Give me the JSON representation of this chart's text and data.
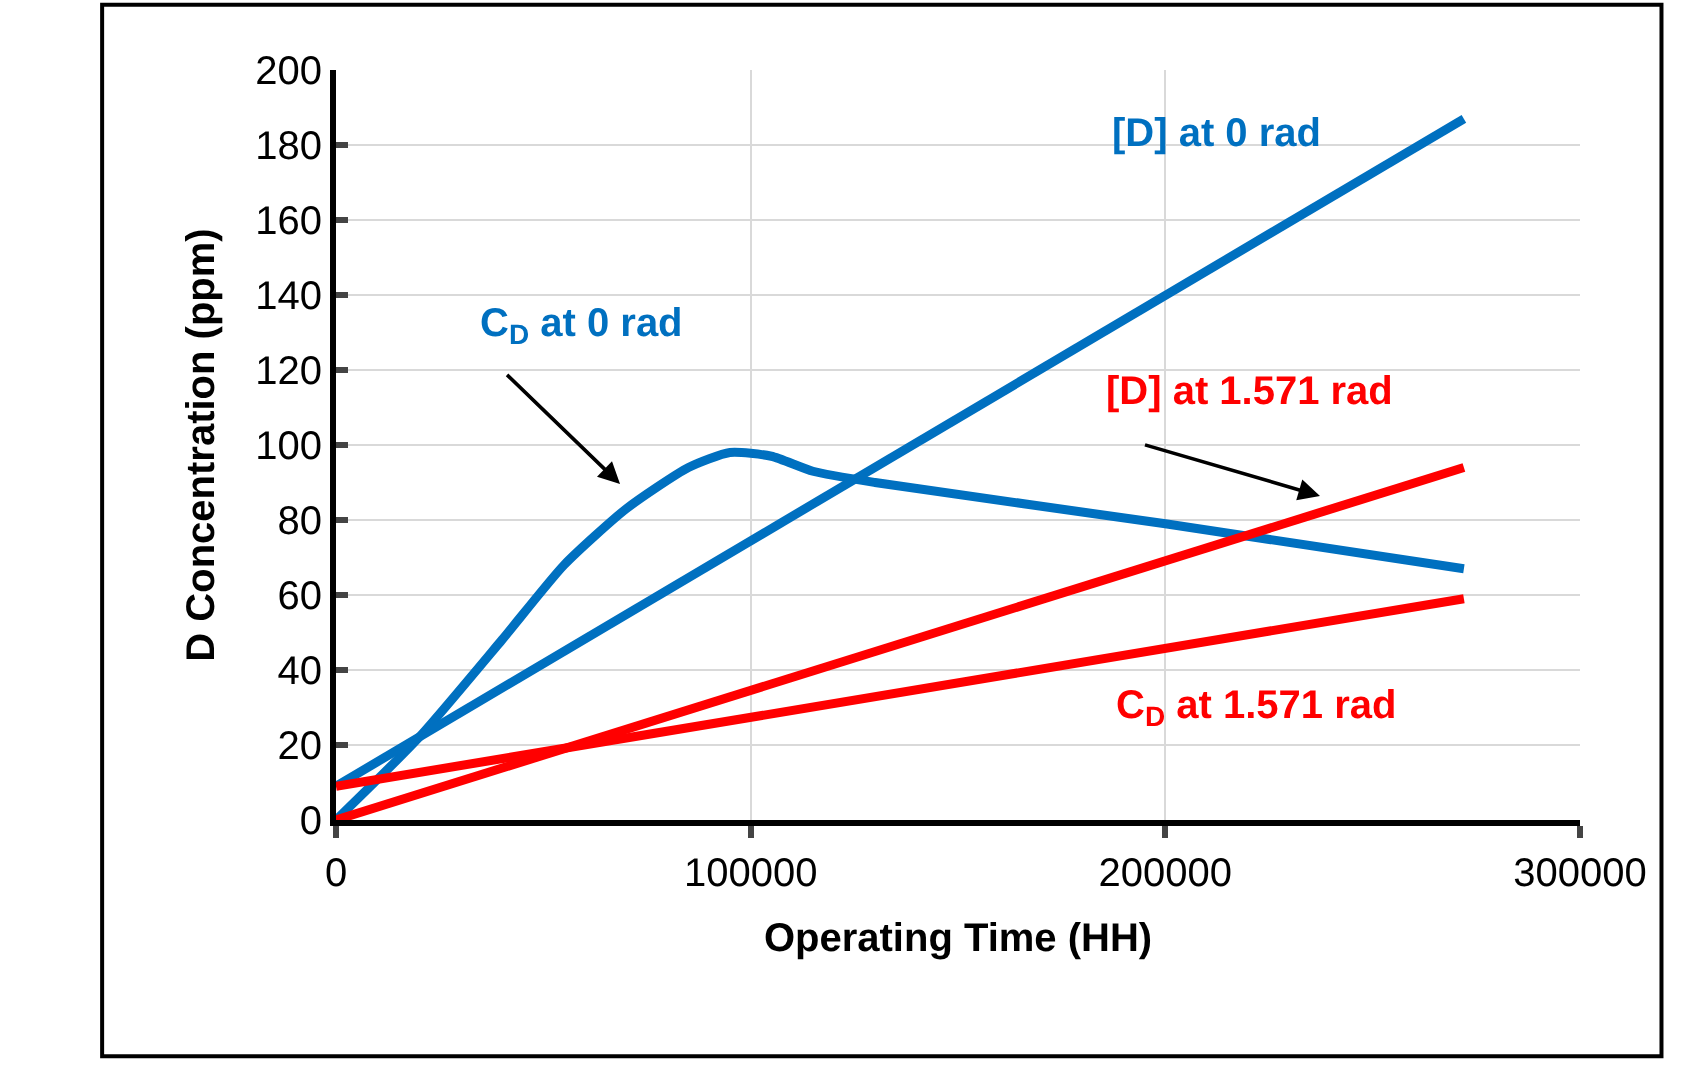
{
  "chart_data": {
    "type": "line",
    "xlabel": "Operating Time (HH)",
    "ylabel": "D Concentration (ppm)",
    "xlim": [
      0,
      300000
    ],
    "xticks": [
      0,
      100000,
      200000,
      300000
    ],
    "ylim": [
      0,
      200
    ],
    "yticks": [
      0,
      20,
      40,
      60,
      80,
      100,
      120,
      140,
      160,
      180,
      200
    ],
    "grid": true,
    "legend": false,
    "marker": "none",
    "line_style": "solid",
    "series": [
      {
        "name": "C$_{D}$ at 0 rad",
        "color": "#0070c0",
        "x": [
          0,
          20000,
          40000,
          55000,
          70000,
          85000,
          95000,
          105000,
          115000,
          130000,
          200000,
          272000
        ],
        "values": [
          0,
          22,
          48,
          68,
          83,
          94,
          98,
          97,
          93,
          90,
          79,
          67
        ]
      },
      {
        "name": "[D] at 0 rad",
        "color": "#0070c0",
        "x": [
          0,
          272000
        ],
        "values": [
          9,
          187
        ]
      },
      {
        "name": "[D] at 1.571 rad",
        "color": "#ff0000",
        "x": [
          0,
          272000
        ],
        "values": [
          0,
          94
        ]
      },
      {
        "name": "C$_{D}$ at 1.571 rad",
        "color": "#ff0000",
        "x": [
          0,
          272000
        ],
        "values": [
          9,
          59
        ]
      }
    ]
  }
}
